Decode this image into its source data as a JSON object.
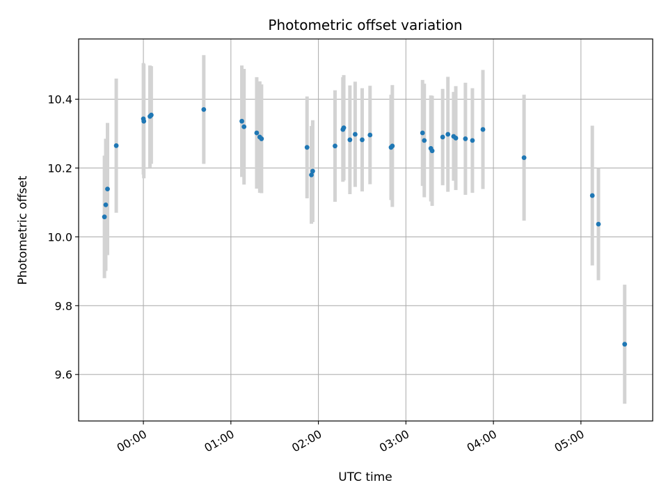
{
  "chart_data": {
    "type": "scatter",
    "title": "Photometric offset variation",
    "xlabel": "UTC time",
    "ylabel": "Photometric offset",
    "x_unit": "UTC hour (fractional, reference day)",
    "xlim": [
      -0.74,
      5.82
    ],
    "ylim": [
      9.465,
      10.575
    ],
    "x_ticks": [
      0,
      1,
      2,
      3,
      4,
      5
    ],
    "x_tick_labels": [
      "00:00",
      "01:00",
      "02:00",
      "03:00",
      "04:00",
      "05:00"
    ],
    "y_ticks": [
      9.6,
      9.8,
      10.0,
      10.2,
      10.4
    ],
    "y_tick_labels": [
      "9.6",
      "9.8",
      "10.0",
      "10.2",
      "10.4"
    ],
    "grid": true,
    "colors": {
      "points": "#1f77b4",
      "errorbars": "#d3d3d3",
      "grid": "#b0b0b0"
    },
    "points": [
      {
        "x": -0.445,
        "y": 10.058,
        "err": 0.178
      },
      {
        "x": -0.43,
        "y": 10.093,
        "err": 0.192
      },
      {
        "x": -0.41,
        "y": 10.139,
        "err": 0.192
      },
      {
        "x": -0.31,
        "y": 10.265,
        "err": 0.195
      },
      {
        "x": 0.0,
        "y": 10.343,
        "err": 0.162
      },
      {
        "x": 0.005,
        "y": 10.336,
        "err": 0.166
      },
      {
        "x": 0.075,
        "y": 10.35,
        "err": 0.148
      },
      {
        "x": 0.09,
        "y": 10.354,
        "err": 0.142
      },
      {
        "x": 0.69,
        "y": 10.37,
        "err": 0.158
      },
      {
        "x": 1.125,
        "y": 10.336,
        "err": 0.162
      },
      {
        "x": 1.15,
        "y": 10.32,
        "err": 0.168
      },
      {
        "x": 1.295,
        "y": 10.302,
        "err": 0.162
      },
      {
        "x": 1.33,
        "y": 10.29,
        "err": 0.162
      },
      {
        "x": 1.35,
        "y": 10.285,
        "err": 0.158
      },
      {
        "x": 1.87,
        "y": 10.26,
        "err": 0.148
      },
      {
        "x": 1.92,
        "y": 10.18,
        "err": 0.142
      },
      {
        "x": 1.935,
        "y": 10.191,
        "err": 0.148
      },
      {
        "x": 2.19,
        "y": 10.264,
        "err": 0.162
      },
      {
        "x": 2.28,
        "y": 10.312,
        "err": 0.152
      },
      {
        "x": 2.29,
        "y": 10.317,
        "err": 0.153
      },
      {
        "x": 2.36,
        "y": 10.282,
        "err": 0.158
      },
      {
        "x": 2.42,
        "y": 10.298,
        "err": 0.153
      },
      {
        "x": 2.5,
        "y": 10.282,
        "err": 0.15
      },
      {
        "x": 2.59,
        "y": 10.296,
        "err": 0.143
      },
      {
        "x": 2.83,
        "y": 10.26,
        "err": 0.153
      },
      {
        "x": 2.845,
        "y": 10.264,
        "err": 0.177
      },
      {
        "x": 3.19,
        "y": 10.302,
        "err": 0.154
      },
      {
        "x": 3.21,
        "y": 10.28,
        "err": 0.165
      },
      {
        "x": 3.285,
        "y": 10.257,
        "err": 0.154
      },
      {
        "x": 3.3,
        "y": 10.25,
        "err": 0.16
      },
      {
        "x": 3.42,
        "y": 10.29,
        "err": 0.14
      },
      {
        "x": 3.48,
        "y": 10.298,
        "err": 0.167
      },
      {
        "x": 3.545,
        "y": 10.292,
        "err": 0.129
      },
      {
        "x": 3.57,
        "y": 10.287,
        "err": 0.151
      },
      {
        "x": 3.68,
        "y": 10.285,
        "err": 0.163
      },
      {
        "x": 3.76,
        "y": 10.28,
        "err": 0.152
      },
      {
        "x": 3.88,
        "y": 10.312,
        "err": 0.173
      },
      {
        "x": 4.35,
        "y": 10.23,
        "err": 0.183
      },
      {
        "x": 5.13,
        "y": 10.12,
        "err": 0.203
      },
      {
        "x": 5.2,
        "y": 10.037,
        "err": 0.163
      },
      {
        "x": 5.5,
        "y": 9.688,
        "err": 0.173
      }
    ]
  }
}
